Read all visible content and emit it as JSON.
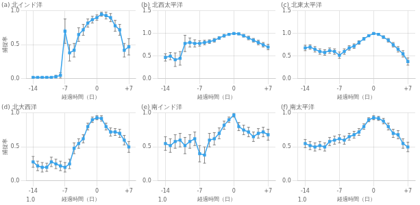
{
  "chart_data": [
    {
      "type": "line",
      "title": "(a) 北インド洋",
      "x": [
        -14,
        -13,
        -12,
        -11,
        -10,
        -9,
        -8,
        -7,
        -6,
        -5,
        -4,
        -3,
        -2,
        -1,
        0,
        1,
        2,
        3,
        4,
        5,
        6,
        7
      ],
      "series": [
        {
          "values": [
            0.02,
            0.02,
            0.02,
            0.02,
            0.02,
            0.03,
            0.05,
            0.7,
            0.38,
            0.42,
            0.65,
            0.72,
            0.82,
            0.87,
            0.9,
            0.95,
            0.93,
            0.9,
            0.78,
            0.72,
            0.42,
            0.47
          ],
          "errors": [
            0.01,
            0.01,
            0.01,
            0.01,
            0.01,
            0.02,
            0.04,
            0.18,
            0.12,
            0.1,
            0.1,
            0.08,
            0.06,
            0.05,
            0.04,
            0.03,
            0.05,
            0.06,
            0.08,
            0.08,
            0.1,
            0.12
          ],
          "marker": "square",
          "line_style": "solid"
        }
      ],
      "xlabel": "経過時間（日）",
      "ylabel": "捕捉率",
      "xlim": [
        -15.5,
        8.5
      ],
      "xticks": [
        -14,
        -7,
        0,
        {
          "value": 7,
          "label": "+7"
        }
      ],
      "ylim": [
        0.0,
        1.0
      ],
      "yticks": [
        {
          "value": 0,
          "label": "0.0"
        },
        0.5,
        {
          "value": 1,
          "label": "1.0"
        }
      ],
      "grid": true
    },
    {
      "type": "line",
      "title": "(b) 北西太平洋",
      "x": [
        -14,
        -13,
        -12,
        -11,
        -10,
        -9,
        -8,
        -7,
        -6,
        -5,
        -4,
        -3,
        -2,
        -1,
        0,
        1,
        2,
        3,
        4,
        5,
        6,
        7
      ],
      "series": [
        {
          "values": [
            0.47,
            0.5,
            0.42,
            0.45,
            0.78,
            0.8,
            0.78,
            0.78,
            0.8,
            0.82,
            0.85,
            0.9,
            0.95,
            0.98,
            1.0,
            0.99,
            0.95,
            0.9,
            0.85,
            0.8,
            0.75,
            0.7
          ],
          "errors": [
            0.08,
            0.08,
            0.15,
            0.15,
            0.18,
            0.1,
            0.08,
            0.06,
            0.05,
            0.04,
            0.04,
            0.03,
            0.03,
            0.02,
            0.02,
            0.02,
            0.03,
            0.04,
            0.04,
            0.05,
            0.05,
            0.06
          ],
          "marker": "square",
          "line_style": "solid"
        }
      ],
      "xlabel": "経過時間（日）",
      "xlim": [
        -15.5,
        8.5
      ],
      "xticks": [
        -14,
        -7,
        0,
        {
          "value": 7,
          "label": "+7"
        }
      ],
      "ylim": [
        0.0,
        1.5
      ],
      "yticks": [
        {
          "value": 0,
          "label": "0.0"
        },
        0.5,
        {
          "value": 1,
          "label": "1.0"
        },
        1.5
      ],
      "grid": true
    },
    {
      "type": "line",
      "title": "(c) 北東太平洋",
      "x": [
        -14,
        -13,
        -12,
        -11,
        -10,
        -9,
        -8,
        -7,
        -6,
        -5,
        -4,
        -3,
        -2,
        -1,
        0,
        1,
        2,
        3,
        4,
        5,
        6,
        7
      ],
      "series": [
        {
          "values": [
            0.68,
            0.7,
            0.65,
            0.6,
            0.58,
            0.62,
            0.6,
            0.52,
            0.6,
            0.68,
            0.72,
            0.8,
            0.88,
            0.95,
            1.0,
            0.98,
            0.92,
            0.85,
            0.75,
            0.65,
            0.55,
            0.38
          ],
          "errors": [
            0.06,
            0.05,
            0.06,
            0.06,
            0.06,
            0.06,
            0.06,
            0.07,
            0.06,
            0.05,
            0.05,
            0.04,
            0.03,
            0.02,
            0.02,
            0.02,
            0.03,
            0.04,
            0.05,
            0.06,
            0.07,
            0.08
          ],
          "marker": "square",
          "line_style": "solid"
        }
      ],
      "xlabel": "経過時間（日）",
      "xlim": [
        -15.5,
        8.5
      ],
      "xticks": [
        -14,
        -7,
        0,
        {
          "value": 7,
          "label": "+7"
        }
      ],
      "ylim": [
        0.0,
        1.5
      ],
      "yticks": [
        {
          "value": 0,
          "label": "0.0"
        },
        0.5,
        {
          "value": 1,
          "label": "1.0"
        },
        1.5
      ],
      "grid": true
    },
    {
      "type": "line",
      "title": "(d) 北大西洋",
      "x": [
        -14,
        -13,
        -12,
        -11,
        -10,
        -9,
        -8,
        -7,
        -6,
        -5,
        -4,
        -3,
        -2,
        -1,
        0,
        1,
        2,
        3,
        4,
        5,
        6,
        7
      ],
      "series": [
        {
          "values": [
            0.28,
            0.22,
            0.2,
            0.2,
            0.28,
            0.25,
            0.22,
            0.2,
            0.25,
            0.48,
            0.55,
            0.62,
            0.8,
            0.9,
            0.93,
            0.92,
            0.8,
            0.72,
            0.72,
            0.7,
            0.6,
            0.5
          ],
          "errors": [
            0.08,
            0.07,
            0.07,
            0.06,
            0.07,
            0.07,
            0.07,
            0.07,
            0.07,
            0.08,
            0.07,
            0.06,
            0.05,
            0.04,
            0.03,
            0.04,
            0.05,
            0.06,
            0.05,
            0.06,
            0.07,
            0.08
          ],
          "marker": "square",
          "line_style": "solid"
        }
      ],
      "xlabel": "経過時間（日）",
      "ylabel": "捕捉率",
      "annotation": "1.0",
      "xlim": [
        -15.5,
        8.5
      ],
      "xticks": [
        -14,
        -7,
        0,
        {
          "value": 7,
          "label": "+7"
        }
      ],
      "ylim": [
        0.0,
        1.0
      ],
      "yticks": [
        {
          "value": 0,
          "label": "0.0"
        },
        0.5,
        {
          "value": 1,
          "label": "1.0"
        }
      ],
      "grid": true
    },
    {
      "type": "line",
      "title": "(e) 南インド洋",
      "x": [
        -14,
        -13,
        -12,
        -11,
        -10,
        -9,
        -8,
        -7,
        -6,
        -5,
        -4,
        -3,
        -2,
        -1,
        0,
        1,
        2,
        3,
        4,
        5,
        6,
        7
      ],
      "series": [
        {
          "values": [
            0.55,
            0.52,
            0.58,
            0.6,
            0.52,
            0.58,
            0.62,
            0.4,
            0.38,
            0.6,
            0.62,
            0.7,
            0.82,
            0.9,
            0.97,
            0.8,
            0.75,
            0.72,
            0.65,
            0.7,
            0.72,
            0.68
          ],
          "errors": [
            0.1,
            0.1,
            0.1,
            0.1,
            0.12,
            0.1,
            0.1,
            0.12,
            0.12,
            0.1,
            0.09,
            0.08,
            0.06,
            0.04,
            0.03,
            0.06,
            0.07,
            0.07,
            0.07,
            0.07,
            0.07,
            0.08
          ],
          "marker": "square",
          "line_style": "solid"
        }
      ],
      "xlabel": "経過時間（日）",
      "annotation": "1.0",
      "xlim": [
        -15.5,
        8.5
      ],
      "xticks": [
        -14,
        -7,
        0,
        {
          "value": 7,
          "label": "+7"
        }
      ],
      "ylim": [
        0.0,
        1.0
      ],
      "yticks": [
        {
          "value": 0,
          "label": "0.0"
        },
        0.5,
        {
          "value": 1,
          "label": "1.0"
        }
      ],
      "grid": true
    },
    {
      "type": "line",
      "title": "(f) 南太平洋",
      "x": [
        -14,
        -13,
        -12,
        -11,
        -10,
        -9,
        -8,
        -7,
        -6,
        -5,
        -4,
        -3,
        -2,
        -1,
        0,
        1,
        2,
        3,
        4,
        5,
        6,
        7
      ],
      "series": [
        {
          "values": [
            0.55,
            0.52,
            0.5,
            0.52,
            0.5,
            0.58,
            0.6,
            0.62,
            0.6,
            0.65,
            0.68,
            0.72,
            0.8,
            0.9,
            0.93,
            0.92,
            0.88,
            0.8,
            0.7,
            0.68,
            0.55,
            0.5
          ],
          "errors": [
            0.06,
            0.06,
            0.06,
            0.06,
            0.06,
            0.06,
            0.06,
            0.06,
            0.06,
            0.05,
            0.05,
            0.05,
            0.04,
            0.03,
            0.03,
            0.03,
            0.04,
            0.05,
            0.06,
            0.06,
            0.07,
            0.07
          ],
          "marker": "square",
          "line_style": "solid"
        }
      ],
      "xlabel": "経過時間（日）",
      "annotation": "1.0",
      "xlim": [
        -15.5,
        8.5
      ],
      "xticks": [
        -14,
        -7,
        0,
        {
          "value": 7,
          "label": "+7"
        }
      ],
      "ylim": [
        0.0,
        1.0
      ],
      "yticks": [
        {
          "value": 0,
          "label": "0.0"
        },
        0.5,
        {
          "value": 1,
          "label": "1.0"
        }
      ],
      "grid": true
    }
  ]
}
